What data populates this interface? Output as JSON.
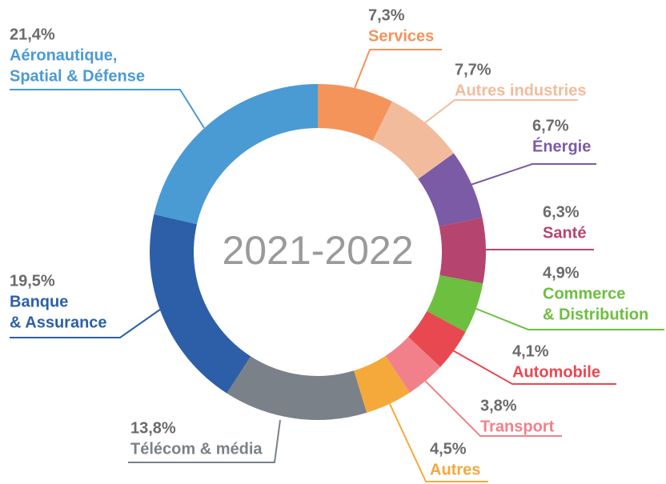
{
  "chart_data": {
    "type": "pie",
    "center_label": "2021-2022",
    "categories": [
      [
        "Services"
      ],
      [
        "Autres industries"
      ],
      [
        "Énergie"
      ],
      [
        "Santé"
      ],
      [
        "Commerce",
        "& Distribution"
      ],
      [
        "Automobile"
      ],
      [
        "Transport"
      ],
      [
        "Autres"
      ],
      [
        "Télécom & média"
      ],
      [
        "Banque",
        "& Assurance"
      ],
      [
        "Aéronautique,",
        "Spatial & Défense"
      ]
    ],
    "values": [
      7.3,
      7.7,
      6.7,
      6.3,
      4.9,
      4.1,
      3.8,
      4.5,
      13.8,
      19.5,
      21.4
    ],
    "value_labels": [
      "7,3%",
      "7,7%",
      "6,7%",
      "6,3%",
      "4,9%",
      "4,1%",
      "3,8%",
      "4,5%",
      "13,8%",
      "19,5%",
      "21,4%"
    ],
    "colors": [
      "#f4935a",
      "#f2bb9c",
      "#7b5aa6",
      "#b5456f",
      "#6cbf3f",
      "#e8484f",
      "#f2808a",
      "#f5a93b",
      "#7a8188",
      "#2c5fa8",
      "#4a9ad4"
    ]
  }
}
